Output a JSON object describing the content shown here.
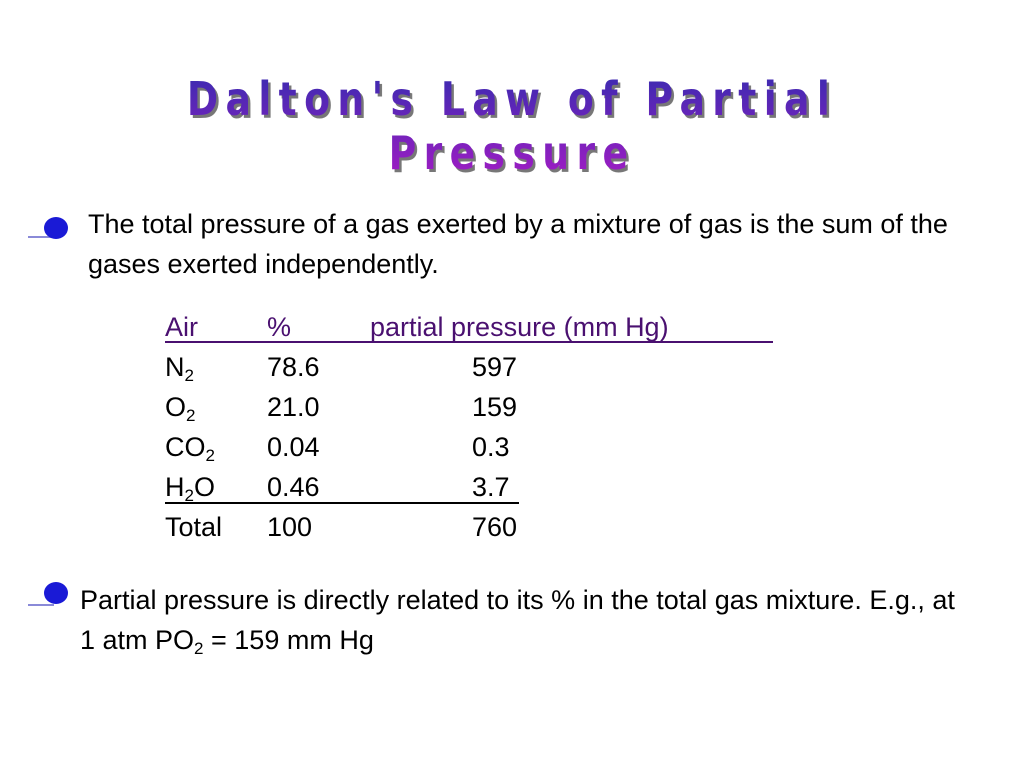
{
  "title": "Dalton's Law of Partial Pressure",
  "bullets": [
    {
      "parts": [
        "The total pressure of a gas exerted by a mixture of gas is the sum of the gases exerted independently."
      ]
    },
    {
      "parts": [
        "Partial pressure is directly related to its % in the total gas mixture. E.g., at 1 atm PO",
        "2",
        " = 159 mm Hg"
      ]
    }
  ],
  "table": {
    "header": [
      "Air",
      "%",
      "partial pressure (mm Hg)"
    ],
    "rows": [
      {
        "air": [
          "N",
          "2"
        ],
        "percent": "78.6",
        "pressure": "597"
      },
      {
        "air": [
          "O",
          "2"
        ],
        "percent": "21.0",
        "pressure": "159"
      },
      {
        "air": [
          "CO",
          "2"
        ],
        "percent": "0.04",
        "pressure": "0.3"
      },
      {
        "air": [
          "H",
          "2",
          "O"
        ],
        "percent": "0.46",
        "pressure": "3.7"
      },
      {
        "air": [
          "Total"
        ],
        "percent": "100",
        "pressure": "760"
      }
    ]
  }
}
